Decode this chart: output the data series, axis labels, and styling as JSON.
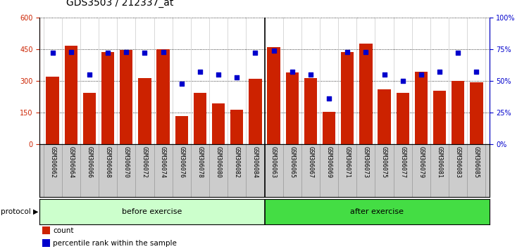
{
  "title": "GDS3503 / 212337_at",
  "categories": [
    "GSM306062",
    "GSM306064",
    "GSM306066",
    "GSM306068",
    "GSM306070",
    "GSM306072",
    "GSM306074",
    "GSM306076",
    "GSM306078",
    "GSM306080",
    "GSM306082",
    "GSM306084",
    "GSM306063",
    "GSM306065",
    "GSM306067",
    "GSM306069",
    "GSM306071",
    "GSM306073",
    "GSM306075",
    "GSM306077",
    "GSM306079",
    "GSM306081",
    "GSM306083",
    "GSM306085"
  ],
  "counts": [
    320,
    465,
    245,
    435,
    445,
    312,
    450,
    135,
    245,
    195,
    165,
    310,
    460,
    340,
    315,
    155,
    435,
    475,
    260,
    245,
    345,
    255,
    300,
    295
  ],
  "percentiles": [
    72,
    73,
    55,
    72,
    73,
    72,
    73,
    48,
    57,
    55,
    53,
    72,
    74,
    57,
    55,
    36,
    73,
    73,
    55,
    50,
    55,
    57,
    72,
    57
  ],
  "group1_label": "before exercise",
  "group2_label": "after exercise",
  "group1_count": 12,
  "group2_count": 12,
  "bar_color": "#cc2200",
  "dot_color": "#0000cc",
  "group1_bg": "#ccffcc",
  "group2_bg": "#44dd44",
  "xlabels_bg": "#cccccc",
  "left_axis_color": "#cc2200",
  "right_axis_color": "#0000cc",
  "ylim_left": [
    0,
    600
  ],
  "ylim_right": [
    0,
    100
  ],
  "yticks_left": [
    0,
    150,
    300,
    450,
    600
  ],
  "yticks_right": [
    0,
    25,
    50,
    75,
    100
  ],
  "legend_count_label": "count",
  "legend_pct_label": "percentile rank within the sample",
  "title_fontsize": 10,
  "tick_fontsize": 7,
  "label_fontsize": 8,
  "protocol_label": "protocol"
}
